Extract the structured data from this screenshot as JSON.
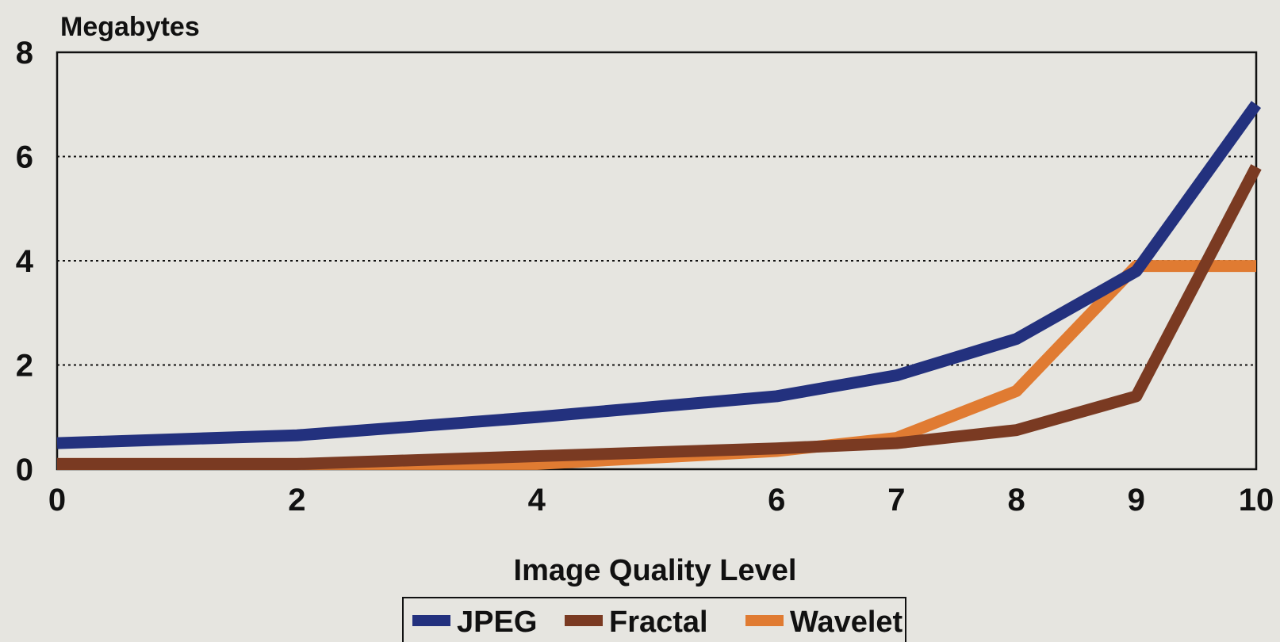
{
  "chart_data": {
    "type": "line",
    "title": "",
    "ylabel": "Megabytes",
    "xlabel": "Image Quality Level",
    "x": [
      0,
      2,
      4,
      6,
      7,
      8,
      9,
      10
    ],
    "x_tick_labels": [
      "0",
      "2",
      "4",
      "6",
      "7",
      "8",
      "9",
      "10"
    ],
    "y_tick_labels": [
      "0",
      "2",
      "4",
      "6",
      "8"
    ],
    "xlim": [
      0,
      10
    ],
    "ylim": [
      0,
      8
    ],
    "grid": "horizontal dotted",
    "legend": "bottom",
    "series": [
      {
        "name": "JPEG",
        "color": "#23317e",
        "values": [
          0.5,
          0.65,
          1.0,
          1.4,
          1.8,
          2.5,
          3.8,
          7.0
        ]
      },
      {
        "name": "Fractal",
        "color": "#7a3a22",
        "values": [
          0.1,
          0.1,
          0.25,
          0.4,
          0.5,
          0.75,
          1.4,
          5.8
        ]
      },
      {
        "name": "Wavelet",
        "color": "#e07b32",
        "values": [
          0.1,
          0.1,
          0.1,
          0.35,
          0.6,
          1.5,
          3.9,
          3.9
        ]
      }
    ]
  }
}
